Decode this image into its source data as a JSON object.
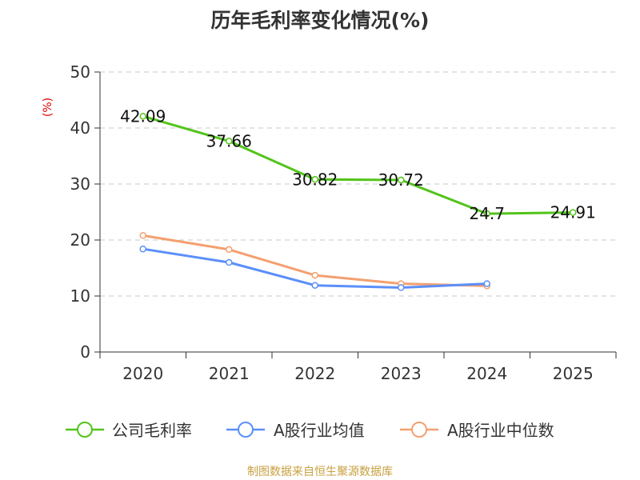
{
  "chart_data": {
    "type": "line",
    "title": "历年毛利率变化情况(%)",
    "ylabel": "(%)",
    "xlabel": "",
    "categories": [
      "2020",
      "2021",
      "2022",
      "2023",
      "2024",
      "2025"
    ],
    "ylim": [
      0,
      50
    ],
    "yticks": [
      0,
      10,
      20,
      30,
      40,
      50
    ],
    "grid": true,
    "legend_position": "bottom",
    "series": [
      {
        "name": "公司毛利率",
        "color": "#52c41a",
        "values": [
          42.09,
          37.66,
          30.82,
          30.72,
          24.7,
          24.91
        ],
        "labels": [
          "42.09",
          "37.66",
          "30.82",
          "30.72",
          "24.7",
          "24.91"
        ]
      },
      {
        "name": "A股行业均值",
        "color": "#5b8ff9",
        "values": [
          18.4,
          16.0,
          11.9,
          11.5,
          12.2,
          null
        ]
      },
      {
        "name": "A股行业中位数",
        "color": "#f4a070",
        "values": [
          20.8,
          18.3,
          13.7,
          12.2,
          11.8,
          null
        ]
      }
    ]
  },
  "source": "制图数据来自恒生聚源数据库"
}
